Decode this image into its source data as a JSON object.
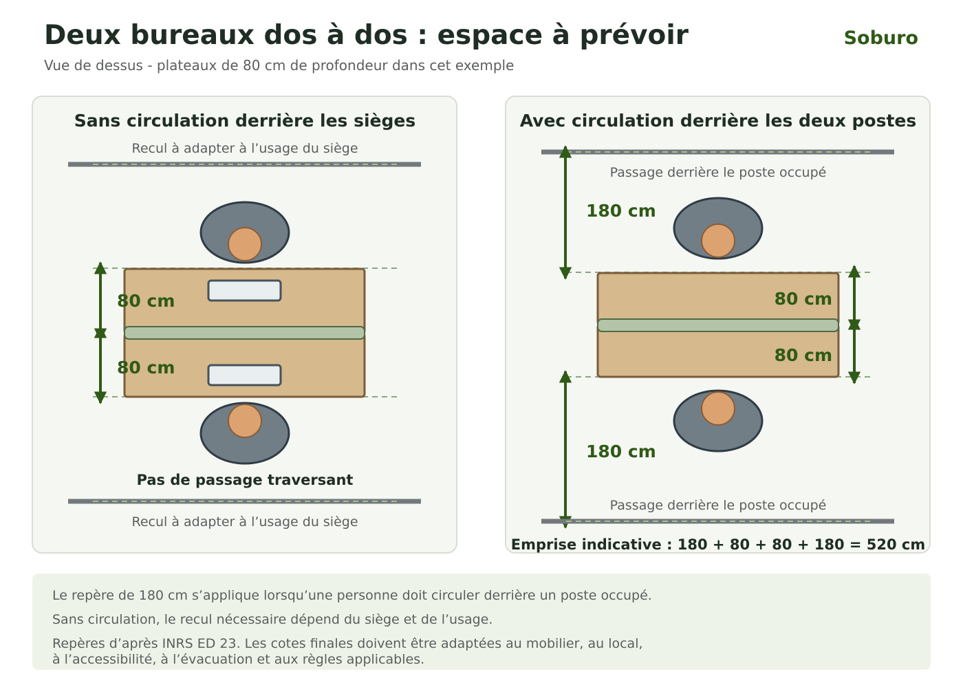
{
  "header": {
    "title": "Deux bureaux dos à dos : espace à prévoir",
    "subtitle": "Vue de dessus - plateaux de 80 cm de profondeur dans cet exemple",
    "brand": "Soburo"
  },
  "panel_left": {
    "title": "Sans circulation derrière les sièges",
    "top_note": "Recul à adapter à l’usage du siège",
    "bottom_note": "Recul à adapter à l’usage du siège",
    "dim_top": "80 cm",
    "dim_bottom": "80 cm",
    "caption": "Pas de passage traversant"
  },
  "panel_right": {
    "title": "Avec circulation derrière les deux postes",
    "top_note": "Passage derrière le poste occupé",
    "bottom_note": "Passage derrière le poste occupé",
    "dim_passage_top": "180 cm",
    "dim_passage_bottom": "180 cm",
    "dim_desk_top": "80 cm",
    "dim_desk_bottom": "80 cm",
    "total": "Emprise indicative : 180 + 80 + 80 + 180 = 520 cm"
  },
  "notes": {
    "line1": "Le repère de 180 cm s’applique lorsqu’une personne doit circuler derrière un poste occupé.",
    "line2": "Sans circulation, le recul nécessaire dépend du siège et de l’usage.",
    "line3a": "Repères d’après INRS ED 23. Les cotes finales doivent être adaptées au mobilier, au local,",
    "line3b": "à l’accessibilité, à l’évacuation et aux règles applicables."
  },
  "colors": {
    "title": "#1f2d24",
    "accent_green": "#2f5a17",
    "muted_text": "#5b5f5c",
    "wall": "#72797c",
    "desk": "#d6b98c",
    "desk_border": "#7a5c3a",
    "divider": "#b3c4a8",
    "chair": "#717e86",
    "chair_border": "#2f3c45",
    "head": "#dca270",
    "panel_bg": "#f5f7f3",
    "notes_bg": "#eef3ea"
  }
}
